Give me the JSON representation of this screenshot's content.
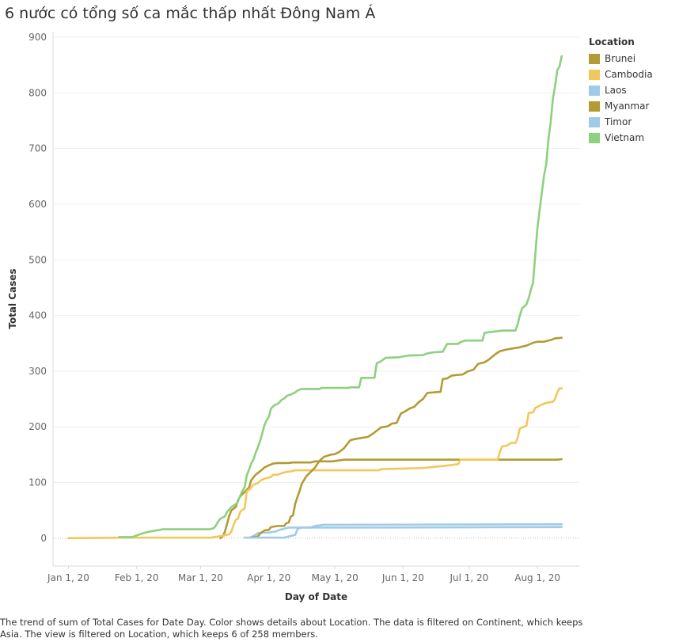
{
  "chart_data": {
    "type": "line",
    "title": "6 nước có tổng số ca mắc thấp nhất Đông Nam Á",
    "xlabel": "Day of Date",
    "ylabel": "Total Cases",
    "x_range": [
      "2019-12-25",
      "2020-08-20"
    ],
    "ylim": [
      -50,
      910
    ],
    "y_ticks": [
      0,
      100,
      200,
      300,
      400,
      500,
      600,
      700,
      800,
      900
    ],
    "x_ticks": [
      {
        "date": "2020-01-01",
        "label": "Jan 1, 20"
      },
      {
        "date": "2020-02-01",
        "label": "Feb 1, 20"
      },
      {
        "date": "2020-03-01",
        "label": "Mar 1, 20"
      },
      {
        "date": "2020-04-01",
        "label": "Apr 1, 20"
      },
      {
        "date": "2020-05-01",
        "label": "May 1, 20"
      },
      {
        "date": "2020-06-01",
        "label": "Jun 1, 20"
      },
      {
        "date": "2020-07-01",
        "label": "Jul 1, 20"
      },
      {
        "date": "2020-08-01",
        "label": "Aug 1, 20"
      }
    ],
    "grid": "horizontal",
    "legend_position": "right",
    "legend_title": "Location",
    "series": [
      {
        "name": "Brunei",
        "color": "#b39b33",
        "points": [
          [
            "2020-03-10",
            0
          ],
          [
            "2020-03-11",
            3
          ],
          [
            "2020-03-12",
            11
          ],
          [
            "2020-03-13",
            25
          ],
          [
            "2020-03-14",
            40
          ],
          [
            "2020-03-15",
            50
          ],
          [
            "2020-03-17",
            56
          ],
          [
            "2020-03-18",
            68
          ],
          [
            "2020-03-19",
            75
          ],
          [
            "2020-03-21",
            83
          ],
          [
            "2020-03-23",
            91
          ],
          [
            "2020-03-24",
            104
          ],
          [
            "2020-03-25",
            109
          ],
          [
            "2020-03-26",
            114
          ],
          [
            "2020-03-28",
            120
          ],
          [
            "2020-03-30",
            127
          ],
          [
            "2020-04-01",
            131
          ],
          [
            "2020-04-03",
            134
          ],
          [
            "2020-04-05",
            135
          ],
          [
            "2020-04-10",
            135
          ],
          [
            "2020-04-12",
            136
          ],
          [
            "2020-04-20",
            136
          ],
          [
            "2020-04-22",
            138
          ],
          [
            "2020-04-30",
            138
          ],
          [
            "2020-05-05",
            141
          ],
          [
            "2020-08-10",
            141
          ],
          [
            "2020-08-12",
            142
          ]
        ]
      },
      {
        "name": "Cambodia",
        "color": "#f2c75c",
        "points": [
          [
            "2020-01-01",
            0
          ],
          [
            "2020-01-27",
            1
          ],
          [
            "2020-03-06",
            1
          ],
          [
            "2020-03-07",
            2
          ],
          [
            "2020-03-09",
            3
          ],
          [
            "2020-03-12",
            5
          ],
          [
            "2020-03-14",
            7
          ],
          [
            "2020-03-15",
            12
          ],
          [
            "2020-03-16",
            24
          ],
          [
            "2020-03-17",
            33
          ],
          [
            "2020-03-18",
            35
          ],
          [
            "2020-03-19",
            47
          ],
          [
            "2020-03-20",
            51
          ],
          [
            "2020-03-21",
            53
          ],
          [
            "2020-03-22",
            84
          ],
          [
            "2020-03-23",
            87
          ],
          [
            "2020-03-24",
            91
          ],
          [
            "2020-03-25",
            96
          ],
          [
            "2020-03-27",
            99
          ],
          [
            "2020-03-28",
            103
          ],
          [
            "2020-03-30",
            107
          ],
          [
            "2020-04-01",
            109
          ],
          [
            "2020-04-02",
            110
          ],
          [
            "2020-04-03",
            114
          ],
          [
            "2020-04-05",
            114
          ],
          [
            "2020-04-07",
            117
          ],
          [
            "2020-04-09",
            119
          ],
          [
            "2020-04-11",
            120
          ],
          [
            "2020-04-13",
            122
          ],
          [
            "2020-05-21",
            122
          ],
          [
            "2020-05-22",
            124
          ],
          [
            "2020-06-01",
            125
          ],
          [
            "2020-06-10",
            126
          ],
          [
            "2020-06-15",
            128
          ],
          [
            "2020-06-20",
            130
          ],
          [
            "2020-06-26",
            133
          ],
          [
            "2020-06-27",
            141
          ],
          [
            "2020-07-14",
            141
          ],
          [
            "2020-07-15",
            156
          ],
          [
            "2020-07-16",
            165
          ],
          [
            "2020-07-18",
            166
          ],
          [
            "2020-07-20",
            171
          ],
          [
            "2020-07-22",
            171
          ],
          [
            "2020-07-23",
            180
          ],
          [
            "2020-07-24",
            197
          ],
          [
            "2020-07-27",
            202
          ],
          [
            "2020-07-28",
            225
          ],
          [
            "2020-07-30",
            226
          ],
          [
            "2020-07-31",
            234
          ],
          [
            "2020-08-03",
            240
          ],
          [
            "2020-08-05",
            243
          ],
          [
            "2020-08-08",
            245
          ],
          [
            "2020-08-09",
            250
          ],
          [
            "2020-08-10",
            262
          ],
          [
            "2020-08-11",
            269
          ],
          [
            "2020-08-12",
            269
          ]
        ]
      },
      {
        "name": "Laos",
        "color": "#a0cbe8",
        "points": [
          [
            "2020-03-24",
            2
          ],
          [
            "2020-03-26",
            6
          ],
          [
            "2020-03-27",
            9
          ],
          [
            "2020-03-29",
            10
          ],
          [
            "2020-04-01",
            10
          ],
          [
            "2020-04-04",
            12
          ],
          [
            "2020-04-06",
            15
          ],
          [
            "2020-04-08",
            17
          ],
          [
            "2020-04-10",
            19
          ],
          [
            "2020-04-17",
            19
          ],
          [
            "2020-05-05",
            19
          ],
          [
            "2020-08-12",
            20
          ]
        ]
      },
      {
        "name": "Myanmar",
        "color": "#b39b33",
        "points": [
          [
            "2020-03-23",
            1
          ],
          [
            "2020-03-27",
            3
          ],
          [
            "2020-03-28",
            8
          ],
          [
            "2020-03-30",
            14
          ],
          [
            "2020-04-01",
            15
          ],
          [
            "2020-04-02",
            20
          ],
          [
            "2020-04-05",
            22
          ],
          [
            "2020-04-08",
            22
          ],
          [
            "2020-04-09",
            27
          ],
          [
            "2020-04-10",
            28
          ],
          [
            "2020-04-11",
            39
          ],
          [
            "2020-04-12",
            41
          ],
          [
            "2020-04-13",
            62
          ],
          [
            "2020-04-14",
            74
          ],
          [
            "2020-04-15",
            85
          ],
          [
            "2020-04-16",
            98
          ],
          [
            "2020-04-18",
            111
          ],
          [
            "2020-04-20",
            119
          ],
          [
            "2020-04-22",
            127
          ],
          [
            "2020-04-24",
            139
          ],
          [
            "2020-04-26",
            146
          ],
          [
            "2020-04-29",
            150
          ],
          [
            "2020-05-01",
            151
          ],
          [
            "2020-05-03",
            155
          ],
          [
            "2020-05-05",
            161
          ],
          [
            "2020-05-08",
            176
          ],
          [
            "2020-05-10",
            178
          ],
          [
            "2020-05-13",
            180
          ],
          [
            "2020-05-16",
            182
          ],
          [
            "2020-05-18",
            187
          ],
          [
            "2020-05-20",
            193
          ],
          [
            "2020-05-22",
            199
          ],
          [
            "2020-05-25",
            201
          ],
          [
            "2020-05-27",
            206
          ],
          [
            "2020-05-29",
            207
          ],
          [
            "2020-05-31",
            224
          ],
          [
            "2020-06-02",
            228
          ],
          [
            "2020-06-04",
            233
          ],
          [
            "2020-06-06",
            236
          ],
          [
            "2020-06-08",
            244
          ],
          [
            "2020-06-10",
            250
          ],
          [
            "2020-06-12",
            261
          ],
          [
            "2020-06-15",
            262
          ],
          [
            "2020-06-18",
            263
          ],
          [
            "2020-06-19",
            286
          ],
          [
            "2020-06-21",
            287
          ],
          [
            "2020-06-23",
            292
          ],
          [
            "2020-06-25",
            293
          ],
          [
            "2020-06-28",
            294
          ],
          [
            "2020-06-30",
            299
          ],
          [
            "2020-07-03",
            303
          ],
          [
            "2020-07-05",
            313
          ],
          [
            "2020-07-08",
            316
          ],
          [
            "2020-07-10",
            321
          ],
          [
            "2020-07-13",
            331
          ],
          [
            "2020-07-15",
            336
          ],
          [
            "2020-07-18",
            339
          ],
          [
            "2020-07-21",
            341
          ],
          [
            "2020-07-24",
            343
          ],
          [
            "2020-07-27",
            346
          ],
          [
            "2020-07-30",
            351
          ],
          [
            "2020-08-01",
            353
          ],
          [
            "2020-08-04",
            353
          ],
          [
            "2020-08-07",
            356
          ],
          [
            "2020-08-09",
            359
          ],
          [
            "2020-08-12",
            360
          ]
        ]
      },
      {
        "name": "Timor",
        "color": "#a0cbe8",
        "points": [
          [
            "2020-03-21",
            1
          ],
          [
            "2020-04-08",
            1
          ],
          [
            "2020-04-09",
            2
          ],
          [
            "2020-04-11",
            4
          ],
          [
            "2020-04-13",
            6
          ],
          [
            "2020-04-14",
            16
          ],
          [
            "2020-04-15",
            18
          ],
          [
            "2020-04-16",
            19
          ],
          [
            "2020-04-20",
            19
          ],
          [
            "2020-04-22",
            22
          ],
          [
            "2020-04-26",
            24
          ],
          [
            "2020-08-12",
            25
          ]
        ]
      },
      {
        "name": "Vietnam",
        "color": "#8cd17d",
        "points": [
          [
            "2020-01-24",
            2
          ],
          [
            "2020-01-30",
            2
          ],
          [
            "2020-02-01",
            5
          ],
          [
            "2020-02-04",
            9
          ],
          [
            "2020-02-07",
            12
          ],
          [
            "2020-02-10",
            14
          ],
          [
            "2020-02-13",
            16
          ],
          [
            "2020-03-05",
            16
          ],
          [
            "2020-03-07",
            18
          ],
          [
            "2020-03-08",
            23
          ],
          [
            "2020-03-09",
            30
          ],
          [
            "2020-03-10",
            35
          ],
          [
            "2020-03-12",
            39
          ],
          [
            "2020-03-13",
            47
          ],
          [
            "2020-03-15",
            56
          ],
          [
            "2020-03-17",
            61
          ],
          [
            "2020-03-18",
            66
          ],
          [
            "2020-03-19",
            76
          ],
          [
            "2020-03-20",
            85
          ],
          [
            "2020-03-21",
            91
          ],
          [
            "2020-03-22",
            113
          ],
          [
            "2020-03-23",
            123
          ],
          [
            "2020-03-24",
            134
          ],
          [
            "2020-03-25",
            141
          ],
          [
            "2020-03-26",
            153
          ],
          [
            "2020-03-27",
            163
          ],
          [
            "2020-03-28",
            174
          ],
          [
            "2020-03-29",
            188
          ],
          [
            "2020-03-30",
            203
          ],
          [
            "2020-03-31",
            212
          ],
          [
            "2020-04-01",
            218
          ],
          [
            "2020-04-02",
            233
          ],
          [
            "2020-04-03",
            237
          ],
          [
            "2020-04-04",
            240
          ],
          [
            "2020-04-05",
            241
          ],
          [
            "2020-04-06",
            245
          ],
          [
            "2020-04-07",
            249
          ],
          [
            "2020-04-08",
            251
          ],
          [
            "2020-04-09",
            255
          ],
          [
            "2020-04-10",
            257
          ],
          [
            "2020-04-11",
            258
          ],
          [
            "2020-04-12",
            260
          ],
          [
            "2020-04-13",
            262
          ],
          [
            "2020-04-14",
            265
          ],
          [
            "2020-04-15",
            267
          ],
          [
            "2020-04-16",
            268
          ],
          [
            "2020-04-24",
            268
          ],
          [
            "2020-04-25",
            270
          ],
          [
            "2020-05-07",
            270
          ],
          [
            "2020-05-08",
            271
          ],
          [
            "2020-05-12",
            271
          ],
          [
            "2020-05-13",
            288
          ],
          [
            "2020-05-19",
            288
          ],
          [
            "2020-05-20",
            314
          ],
          [
            "2020-05-22",
            318
          ],
          [
            "2020-05-24",
            324
          ],
          [
            "2020-05-30",
            325
          ],
          [
            "2020-06-03",
            328
          ],
          [
            "2020-06-10",
            329
          ],
          [
            "2020-06-12",
            332
          ],
          [
            "2020-06-15",
            334
          ],
          [
            "2020-06-19",
            335
          ],
          [
            "2020-06-21",
            349
          ],
          [
            "2020-06-26",
            349
          ],
          [
            "2020-06-27",
            352
          ],
          [
            "2020-06-29",
            355
          ],
          [
            "2020-07-01",
            355
          ],
          [
            "2020-07-07",
            355
          ],
          [
            "2020-07-08",
            369
          ],
          [
            "2020-07-14",
            372
          ],
          [
            "2020-07-16",
            373
          ],
          [
            "2020-07-22",
            373
          ],
          [
            "2020-07-23",
            384
          ],
          [
            "2020-07-24",
            400
          ],
          [
            "2020-07-25",
            413
          ],
          [
            "2020-07-26",
            416
          ],
          [
            "2020-07-27",
            420
          ],
          [
            "2020-07-28",
            431
          ],
          [
            "2020-07-29",
            446
          ],
          [
            "2020-07-30",
            459
          ],
          [
            "2020-07-31",
            509
          ],
          [
            "2020-08-01",
            558
          ],
          [
            "2020-08-02",
            590
          ],
          [
            "2020-08-03",
            621
          ],
          [
            "2020-08-04",
            652
          ],
          [
            "2020-08-05",
            672
          ],
          [
            "2020-08-06",
            717
          ],
          [
            "2020-08-07",
            747
          ],
          [
            "2020-08-08",
            789
          ],
          [
            "2020-08-09",
            812
          ],
          [
            "2020-08-10",
            841
          ],
          [
            "2020-08-11",
            847
          ],
          [
            "2020-08-12",
            866
          ]
        ]
      }
    ]
  },
  "caption": "The trend of sum of Total Cases for Date Day.  Color shows details about Location. The data is filtered on Continent, which keeps Asia. The view is filtered on Location, which keeps 6 of 258 members."
}
